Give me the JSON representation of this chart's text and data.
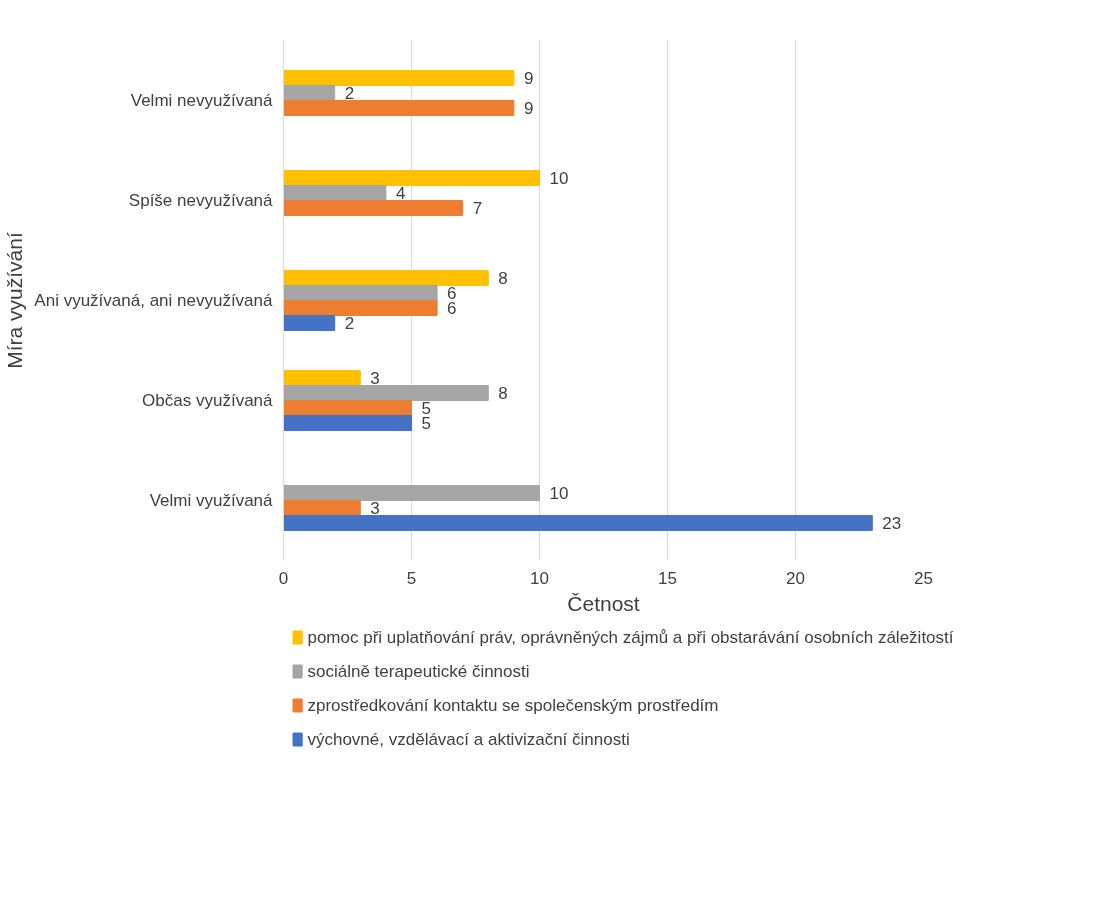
{
  "chart_data": {
    "type": "bar",
    "orientation": "horizontal",
    "xlabel": "Četnost",
    "ylabel": "Míra využívání",
    "categories": [
      "Velmi nevyužívaná",
      "Spíše nevyužívaná",
      "Ani využívaná, ani nevyužívaná",
      "Občas využívaná",
      "Velmi využívaná"
    ],
    "series": [
      {
        "name": "pomoc při uplatňování práv, oprávněných zájmů a při obstarávání osobních záležitostí",
        "color": "#ffc000",
        "values": [
          9,
          10,
          8,
          3,
          null
        ]
      },
      {
        "name": " sociálně terapeutické činnosti",
        "color": "#a5a5a5",
        "values": [
          2,
          4,
          6,
          8,
          10
        ]
      },
      {
        "name": " zprostředkování kontaktu se společenským prostředím",
        "color": "#ed7d31",
        "values": [
          9,
          7,
          6,
          5,
          3
        ]
      },
      {
        "name": "výchovné, vzdělávací a aktivizační činnosti",
        "color": "#4472c4",
        "values": [
          null,
          null,
          2,
          5,
          23
        ]
      }
    ],
    "xlim": [
      0,
      25
    ],
    "xticks": [
      0,
      5,
      10,
      15,
      20,
      25
    ],
    "grid": "x",
    "legend": "bottom",
    "data_labels": true
  }
}
